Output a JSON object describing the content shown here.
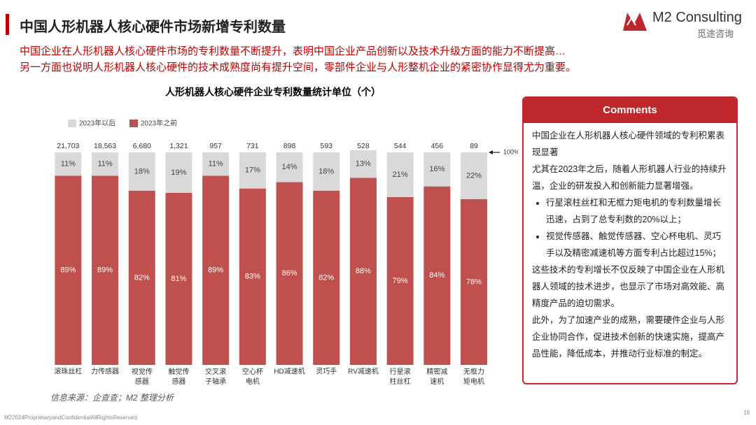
{
  "header": {
    "title": "中国人形机器人核心硬件市场新增专利数量",
    "logo_name": "M2 Consulting",
    "logo_cn": "觅途咨询"
  },
  "subtitle": [
    "中国企业在人形机器人核心硬件市场的专利数量不断提升，表明中国企业产品创新以及技术升级方面的能力不断提高…",
    "另一方面也说明人形机器人核心硬件的技术成熟度尚有提升空间，零部件企业与人形整机企业的紧密协作显得尤为重要。"
  ],
  "chart_data": {
    "type": "stacked_bar",
    "title": "人形机器人核心硬件企业专利数量统计单位（个）",
    "categories": [
      "滚珠丝杠",
      "力传感器",
      "视觉传感器",
      "触觉传感器",
      "交叉滚子轴承",
      "空心杯电机",
      "HD减速机",
      "灵巧手",
      "RV减速机",
      "行星滚柱丝杠",
      "精密减速机",
      "无框力矩电机"
    ],
    "series": [
      {
        "name": "2023年之前",
        "color": "#c0504d",
        "values": [
          89,
          89,
          82,
          81,
          89,
          83,
          86,
          82,
          88,
          79,
          84,
          78
        ],
        "value_labels": [
          "89%",
          "89%",
          "82%",
          "81%",
          "89%",
          "83%",
          "86%",
          "82%",
          "88%",
          "79%",
          "84%",
          "78%"
        ]
      },
      {
        "name": "2023年以后",
        "color": "#d9d9d9",
        "values": [
          11,
          11,
          18,
          19,
          11,
          17,
          14,
          18,
          13,
          21,
          16,
          22
        ],
        "value_labels": [
          "11%",
          "11%",
          "18%",
          "19%",
          "11%",
          "17%",
          "14%",
          "18%",
          "13%",
          "21%",
          "16%",
          "22%"
        ]
      }
    ],
    "totals": {
      "values": [
        21703,
        18563,
        6680,
        1321,
        957,
        731,
        898,
        593,
        528,
        544,
        456,
        89
      ],
      "value_labels": [
        "21,703",
        "18,563",
        "6,680",
        "1,321",
        "957",
        "731",
        "898",
        "593",
        "528",
        "544",
        "456",
        "89"
      ]
    },
    "annotation": "100%",
    "ylim": [
      0,
      100
    ],
    "legend": "top-left"
  },
  "comments": {
    "title": "Comments",
    "paragraphs_before": [
      "中国企业在人形机器人核心硬件领域的专利积累表现显著",
      "尤其在2023年之后，随着人形机器人行业的持续升温，企业的研发投入和创新能力显著增强。"
    ],
    "bullets": [
      "行星滚柱丝杠和无框力矩电机的专利数量增长迅速，占到了总专利数的20%以上；",
      "视觉传感器、触觉传感器、空心杯电机、灵巧手以及精密减速机等方面专利占比超过15%；"
    ],
    "paragraphs_after": [
      "这些技术的专利增长不仅反映了中国企业在人形机器人领域的技术进步，也显示了市场对高效能、高精度产品的迫切需求。",
      "此外，为了加速产业的成熟，需要硬件企业与人形企业协同合作，促进技术创新的快速实施，提高产品性能，降低成本，并推动行业标准的制定。"
    ]
  },
  "source": "信息来源：企查查；M2 整理分析",
  "footer": "M22024ProprietaryandConfidentialAllRightsReserved.",
  "page_number": "16"
}
